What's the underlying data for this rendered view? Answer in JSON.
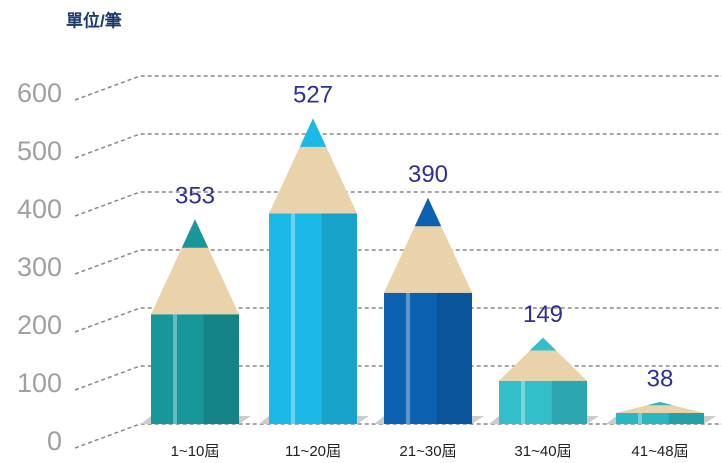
{
  "chart_data": {
    "type": "bar",
    "ylabel": "單位/筆",
    "categories": [
      "1~10屆",
      "11~20屆",
      "21~30屆",
      "31~40屆",
      "41~48屆"
    ],
    "values": [
      353,
      527,
      390,
      149,
      38
    ],
    "colors": [
      "#17979a",
      "#1bb9e6",
      "#0b60b0",
      "#33bfca",
      "#2ab7c0"
    ],
    "ylim": [
      0,
      600
    ],
    "yticks": [
      0,
      100,
      200,
      300,
      400,
      500,
      600
    ],
    "grid": true
  }
}
